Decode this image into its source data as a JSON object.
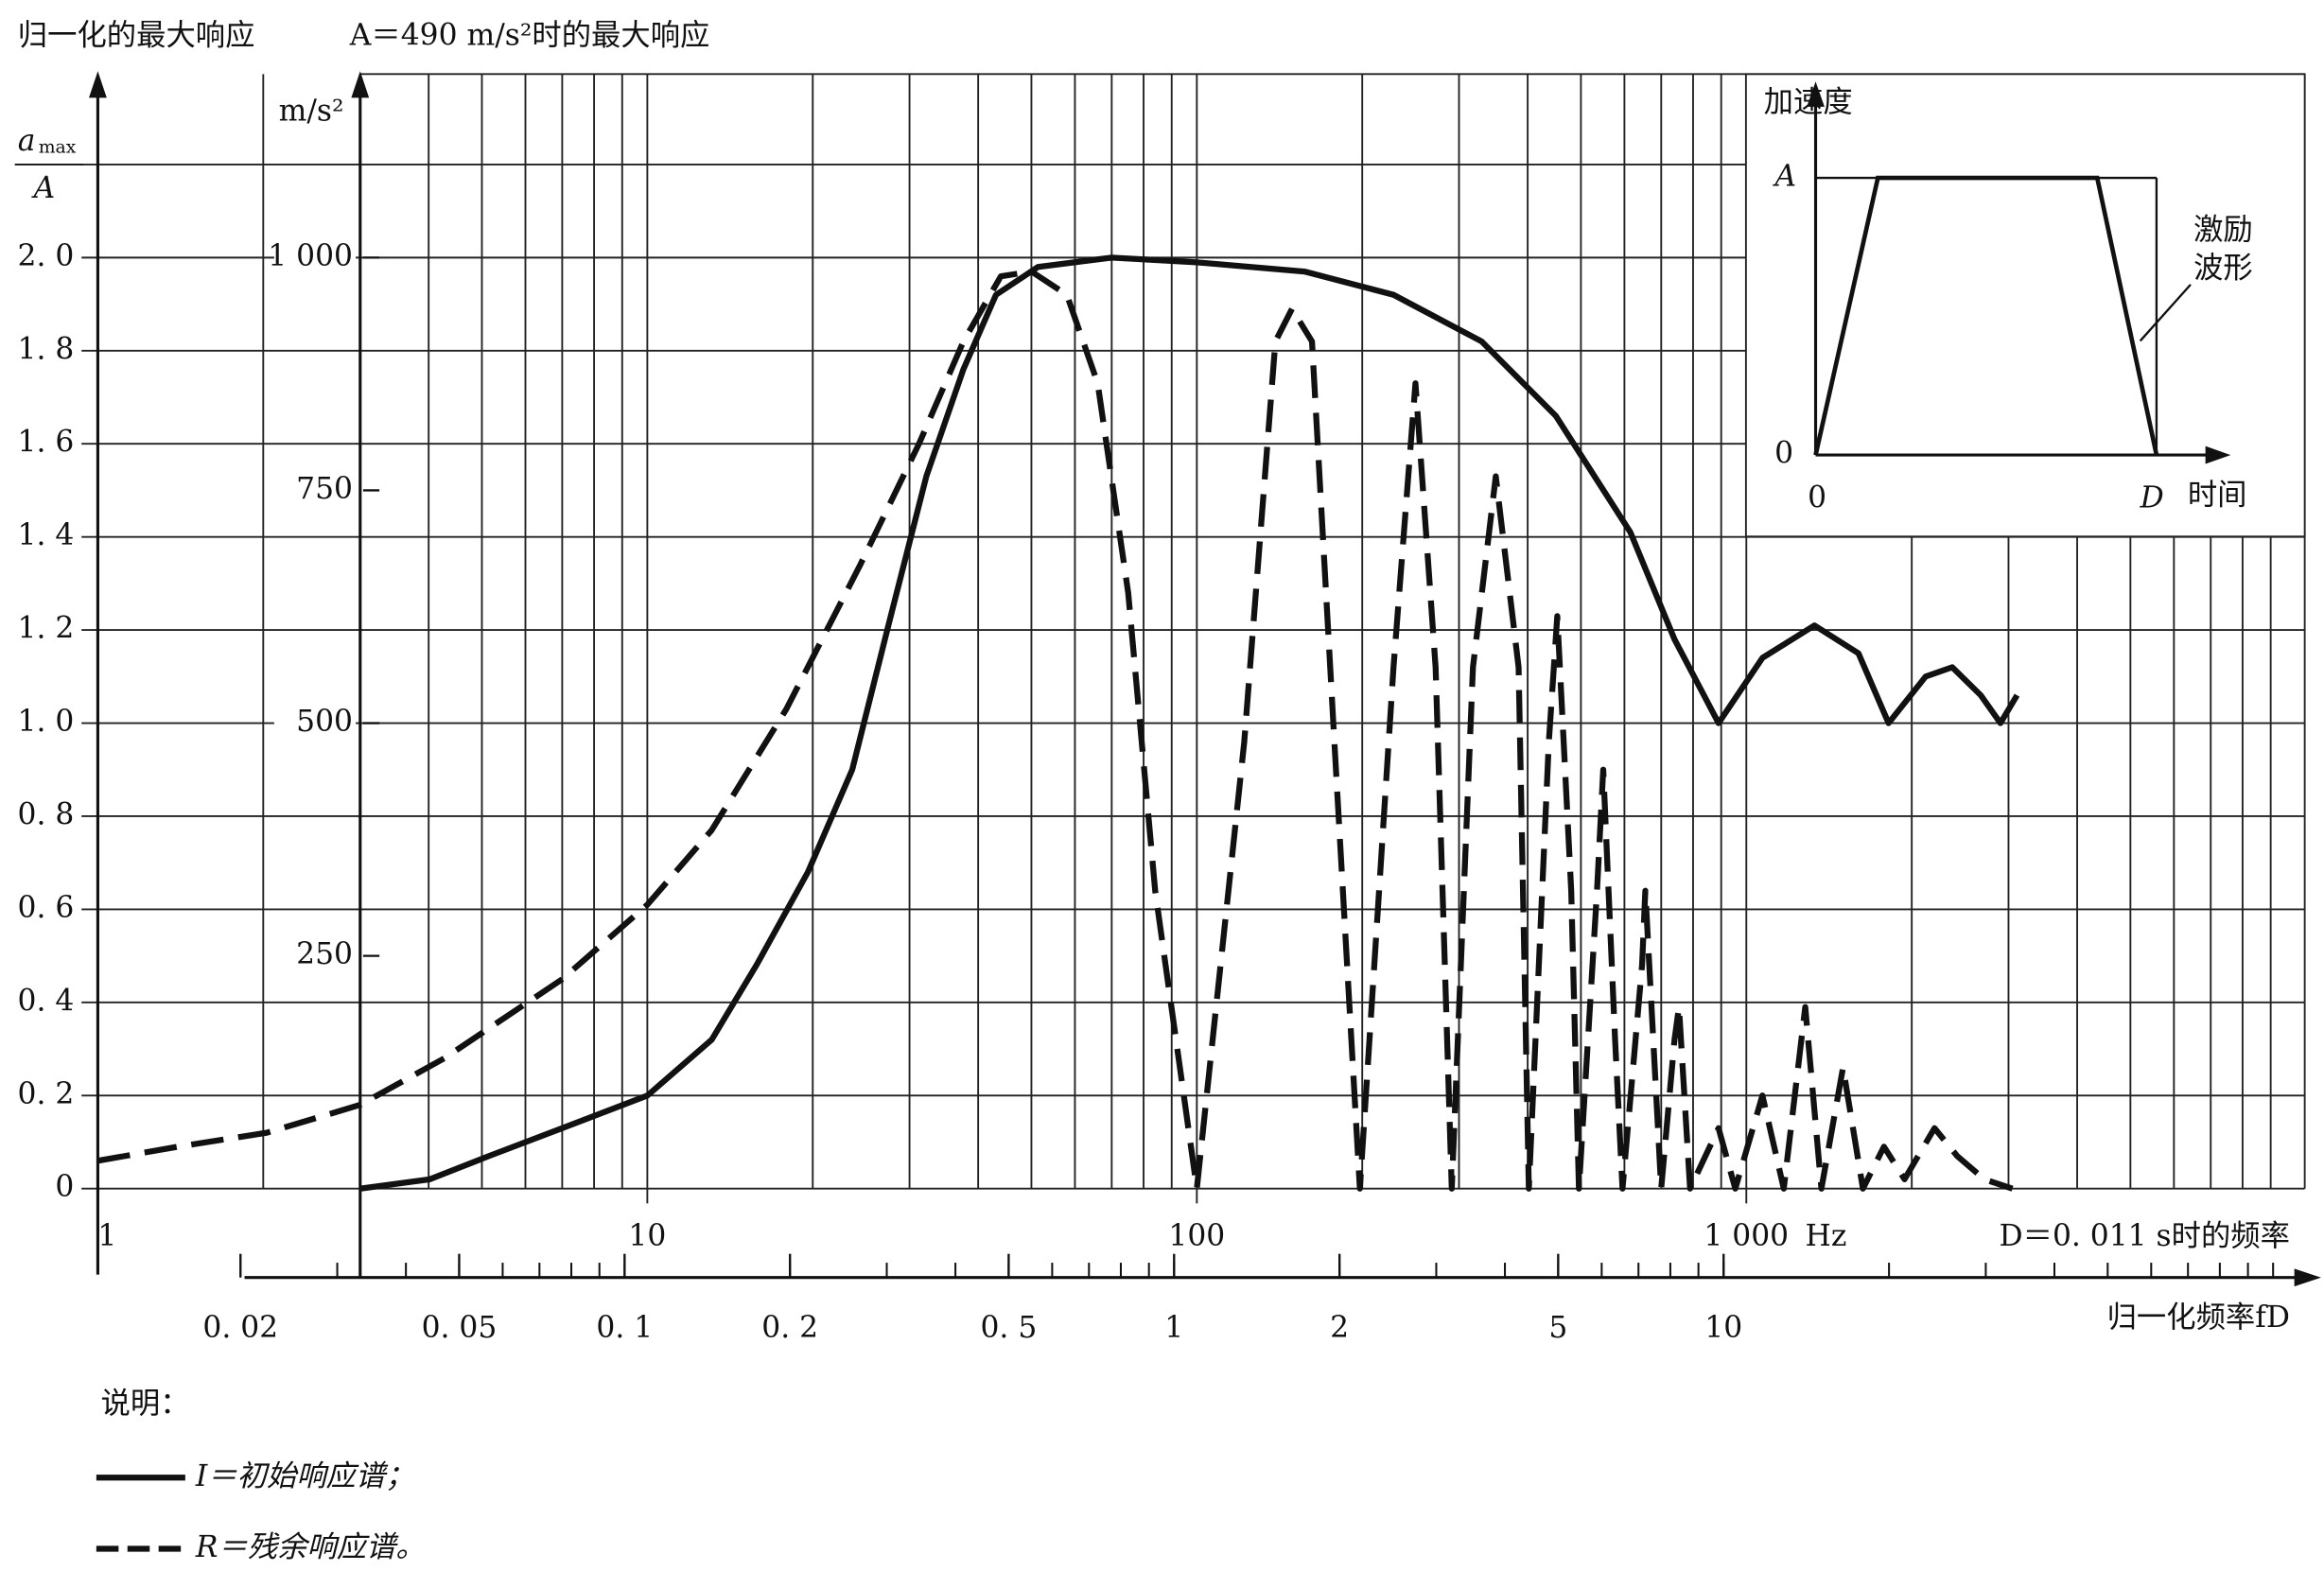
{
  "chart_data": {
    "type": "line",
    "title": "归一化的最大响应",
    "subtitle": "A＝490 m/s²时的最大响应",
    "y_label": {
      "numerator": "a",
      "subscript": "max",
      "denominator": "A"
    },
    "y2_label": "m/s²",
    "x_label": "D＝0. 011 s时的频率",
    "x_unit": "Hz",
    "x2_label": "归一化频率fD",
    "log_x": true,
    "grid": true,
    "xlim": [
      1,
      10000
    ],
    "xticks": [
      1,
      10,
      100,
      {
        "value": 1000,
        "label": "1 000"
      }
    ],
    "ylim": [
      0,
      2.2
    ],
    "yticks": [
      0,
      {
        "value": 0.2,
        "label": "0. 2"
      },
      {
        "value": 0.4,
        "label": "0. 4"
      },
      {
        "value": 0.6,
        "label": "0. 6"
      },
      {
        "value": 0.8,
        "label": "0. 8"
      },
      {
        "value": 1,
        "label": "1. 0"
      },
      {
        "value": 1.2,
        "label": "1. 2"
      },
      {
        "value": 1.4,
        "label": "1. 4"
      },
      {
        "value": 1.6,
        "label": "1. 6"
      },
      {
        "value": 1.8,
        "label": "1. 8"
      },
      {
        "value": 2,
        "label": "2. 0"
      }
    ],
    "y2lim": [
      0,
      1100
    ],
    "y2ticks": [
      250,
      500,
      750,
      {
        "value": 1000,
        "label": "1 000"
      }
    ],
    "x2lim": [
      0.011,
      110
    ],
    "x2ticks": [
      {
        "value": 0.02,
        "label": "0. 02"
      },
      {
        "value": 0.05,
        "label": "0. 05"
      },
      {
        "value": 0.1,
        "label": "0. 1"
      },
      {
        "value": 0.2,
        "label": "0. 2"
      },
      {
        "value": 0.5,
        "label": "0. 5"
      },
      1,
      2,
      5,
      10
    ],
    "legend_title": "说明：",
    "series": [
      {
        "name": "I＝初始响应谱；",
        "color": "#111111",
        "style": "solid",
        "x": [
          3.0,
          4.02,
          5.15,
          7.0,
          10,
          13.1,
          15.8,
          19.6,
          23.6,
          27.6,
          32.2,
          37.6,
          43.1,
          51.4,
          70,
          100,
          157,
          228,
          330,
          450,
          615,
          740,
          890,
          1070,
          1330,
          1600,
          1815,
          2120,
          2370,
          2670,
          2900,
          3110
        ],
        "values": [
          0,
          0.02,
          0.07,
          0.13,
          0.2,
          0.32,
          0.48,
          0.68,
          0.9,
          1.22,
          1.53,
          1.76,
          1.92,
          1.98,
          2.0,
          1.99,
          1.97,
          1.92,
          1.82,
          1.66,
          1.41,
          1.18,
          1.0,
          1.14,
          1.21,
          1.15,
          1.0,
          1.1,
          1.12,
          1.06,
          1.0,
          1.06
        ]
      },
      {
        "name": "R＝残余响应谱。",
        "color": "#111111",
        "style": "dashed",
        "x": [
          1,
          1.4,
          2.03,
          3.0,
          4.27,
          7.0,
          10,
          13.1,
          17.9,
          24.4,
          31.2,
          37.6,
          44,
          50,
          58,
          66,
          75,
          84,
          100,
          122,
          139,
          149,
          162,
          178,
          198,
          228,
          250,
          272,
          291,
          318,
          350,
          385,
          402,
          437,
          453,
          480,
          496,
          535,
          549,
          577,
          595,
          646,
          655,
          700,
          740,
          754,
          790,
          890,
          955,
          1070,
          1170,
          1280,
          1370,
          1500,
          1630,
          1780,
          1940,
          2200,
          2420,
          2710,
          3050
        ],
        "values": [
          0.06,
          0.09,
          0.12,
          0.18,
          0.28,
          0.45,
          0.61,
          0.77,
          1.03,
          1.34,
          1.6,
          1.82,
          1.96,
          1.97,
          1.92,
          1.73,
          1.28,
          0.64,
          0,
          0.96,
          1.82,
          1.89,
          1.82,
          0.96,
          0,
          1.12,
          1.73,
          1.12,
          0,
          1.12,
          1.53,
          1.12,
          0,
          0.96,
          1.23,
          0.64,
          0,
          0.64,
          0.9,
          0.32,
          0,
          0.48,
          0.64,
          0,
          0.32,
          0.39,
          0,
          0.13,
          0,
          0.2,
          0,
          0.39,
          0,
          0.26,
          0,
          0.09,
          0.02,
          0.13,
          0.07,
          0.02,
          0
        ]
      }
    ],
    "inset": {
      "y_label": "加速度",
      "A": "A",
      "zero_y": "0",
      "zero_x": "0",
      "D": "D",
      "x_label": "时间",
      "note": [
        "激励",
        "波形"
      ]
    }
  }
}
